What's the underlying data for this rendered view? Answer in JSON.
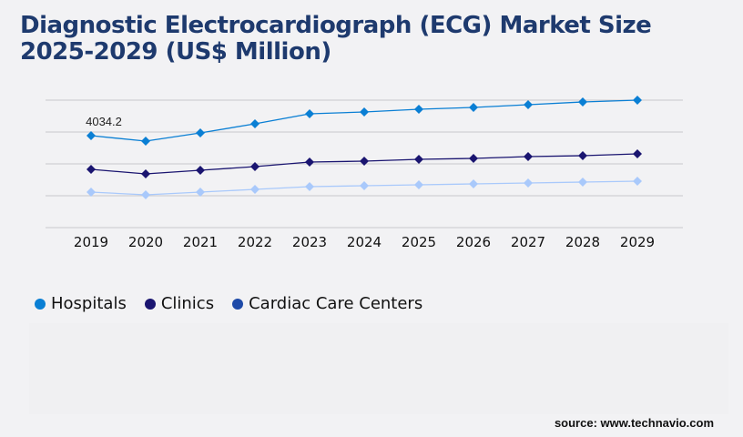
{
  "title": "Diagnostic Electrocardiograph (ECG) Market Size 2025-2029 (US$ Million)",
  "source": "source: www.technavio.com",
  "chart_data": {
    "type": "line",
    "title": "Diagnostic Electrocardiograph (ECG) Market Size 2025-2029 (US$ Million)",
    "categories": [
      "2019",
      "2020",
      "2021",
      "2022",
      "2023",
      "2024",
      "2025",
      "2026",
      "2027",
      "2028",
      "2029"
    ],
    "ylim": [
      0,
      5600
    ],
    "grid": true,
    "legend": "bottom-left",
    "series": [
      {
        "name": "Hospitals",
        "color": "#0a7fd4",
        "legend_color": "#0a7fd4",
        "values": [
          4034.2,
          3794,
          4154,
          4553,
          4993,
          5073,
          5193,
          5273,
          5393,
          5512,
          5592
        ]
      },
      {
        "name": "Clinics",
        "color": "#1a1570",
        "legend_color": "#1a1570",
        "values": [
          2556,
          2356,
          2516,
          2676,
          2876,
          2916,
          2996,
          3035,
          3115,
          3155,
          3235
        ]
      },
      {
        "name": "Cardiac Care Centers",
        "color": "#a9c9fb",
        "legend_color": "#1e4aa8",
        "values": [
          1558,
          1438,
          1558,
          1677,
          1797,
          1837,
          1877,
          1917,
          1957,
          1997,
          2037
        ]
      }
    ],
    "annotations": [
      {
        "series": "Hospitals",
        "category": "2019",
        "label": "4034.2"
      }
    ]
  }
}
